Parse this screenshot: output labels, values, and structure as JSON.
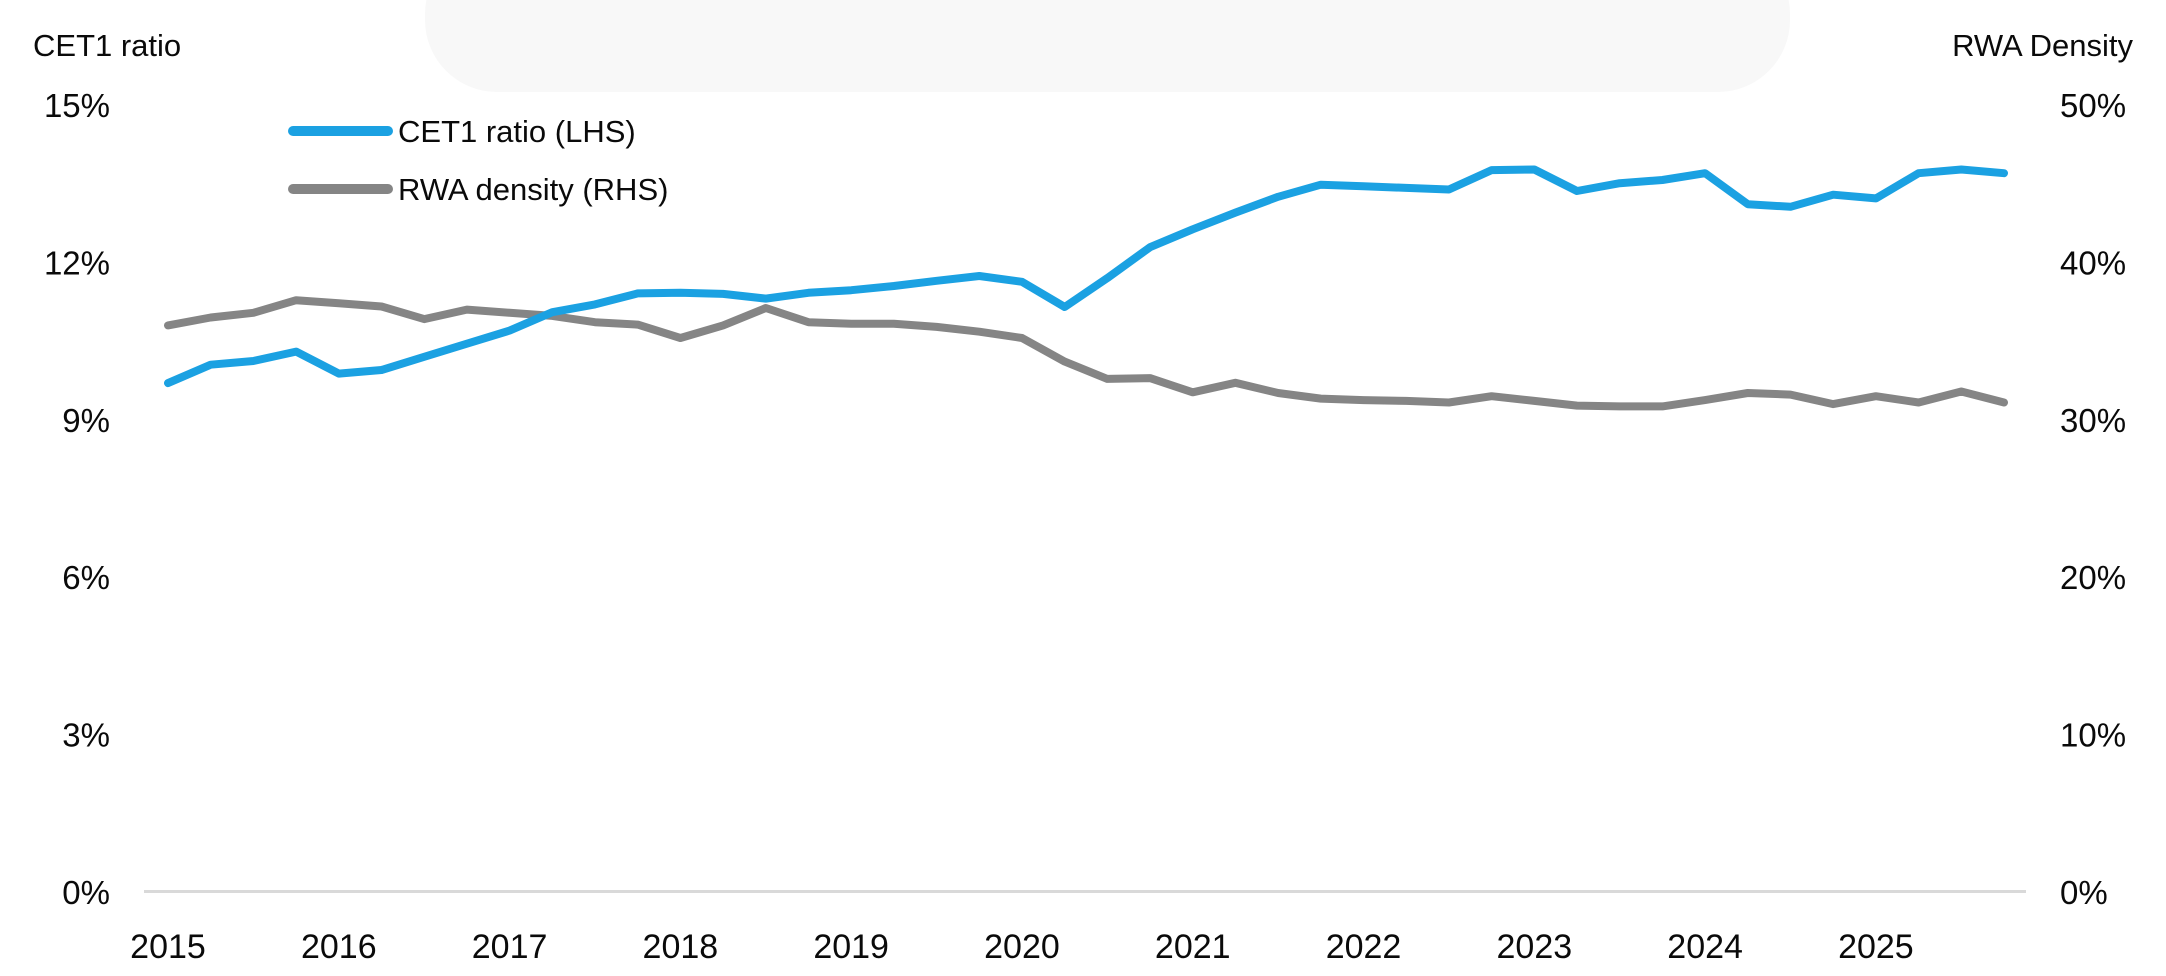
{
  "titles": {
    "left_axis": "CET1 ratio",
    "right_axis": "RWA Density"
  },
  "legend": [
    {
      "label": "CET1 ratio (LHS)",
      "color": "#1BA1E2"
    },
    {
      "label": "RWA density (RHS)",
      "color": "#858585"
    }
  ],
  "colors": {
    "axis_line": "#D9D9D9",
    "header_blob": "#F8F8F8",
    "text": "#0a0a0a"
  },
  "chart_data": {
    "type": "line",
    "title": "",
    "xlabel": "",
    "grid": "off",
    "legend_position": "top-left-inside",
    "x": [
      "2015 Q1",
      "2015 Q2",
      "2015 Q3",
      "2015 Q4",
      "2016 Q1",
      "2016 Q2",
      "2016 Q3",
      "2016 Q4",
      "2017 Q1",
      "2017 Q2",
      "2017 Q3",
      "2017 Q4",
      "2018 Q1",
      "2018 Q2",
      "2018 Q3",
      "2018 Q4",
      "2019 Q1",
      "2019 Q2",
      "2019 Q3",
      "2019 Q4",
      "2020 Q1",
      "2020 Q2",
      "2020 Q3",
      "2020 Q4",
      "2021 Q1",
      "2021 Q2",
      "2021 Q3",
      "2021 Q4",
      "2022 Q1",
      "2022 Q2",
      "2022 Q3",
      "2022 Q4",
      "2023 Q1",
      "2023 Q2",
      "2023 Q3",
      "2023 Q4",
      "2024 Q1",
      "2024 Q2",
      "2024 Q3",
      "2024 Q4",
      "2025 Q1",
      "2025 Q2",
      "2025 Q3",
      "2025 Q4"
    ],
    "x_tick_labels": [
      "2015",
      "2016",
      "2017",
      "2018",
      "2019",
      "2020",
      "2021",
      "2022",
      "2023",
      "2024",
      "2025"
    ],
    "left_axis": {
      "label": "CET1 ratio",
      "range": [
        0,
        15
      ],
      "ticks": [
        "0%",
        "3%",
        "6%",
        "9%",
        "12%",
        "15%"
      ]
    },
    "right_axis": {
      "label": "RWA Density",
      "range": [
        0,
        50
      ],
      "ticks": [
        "0%",
        "10%",
        "20%",
        "30%",
        "40%",
        "50%"
      ]
    },
    "series": [
      {
        "name": "CET1 ratio (LHS)",
        "axis": "left",
        "color": "#1BA1E2",
        "unit": "%",
        "values": [
          9.7,
          10.05,
          10.12,
          10.3,
          9.88,
          9.95,
          10.2,
          10.45,
          10.7,
          11.05,
          11.2,
          11.41,
          11.42,
          11.4,
          11.31,
          11.42,
          11.47,
          11.55,
          11.65,
          11.74,
          11.63,
          11.15,
          11.7,
          12.29,
          12.63,
          12.95,
          13.25,
          13.48,
          13.45,
          13.42,
          13.39,
          13.76,
          13.77,
          13.36,
          13.51,
          13.57,
          13.7,
          13.11,
          13.06,
          13.29,
          13.22,
          13.7,
          13.77,
          13.7
        ]
      },
      {
        "name": "RWA density (RHS)",
        "axis": "right",
        "color": "#858585",
        "unit": "%",
        "values": [
          36.0,
          36.5,
          36.8,
          37.6,
          37.4,
          37.2,
          36.4,
          37.0,
          36.8,
          36.6,
          36.2,
          36.05,
          35.2,
          36.0,
          37.1,
          36.2,
          36.1,
          36.1,
          35.9,
          35.6,
          35.2,
          33.7,
          32.6,
          32.65,
          31.75,
          32.35,
          31.7,
          31.35,
          31.25,
          31.2,
          31.1,
          31.5,
          31.2,
          30.9,
          30.85,
          30.85,
          31.25,
          31.7,
          31.6,
          31.0,
          31.5,
          31.1,
          31.8,
          31.1
        ]
      }
    ]
  }
}
